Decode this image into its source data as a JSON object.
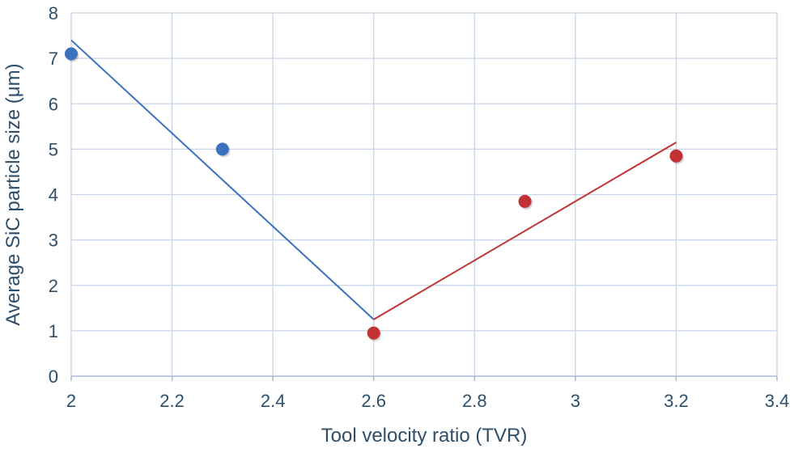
{
  "chart_data": {
    "type": "scatter",
    "title": "",
    "xlabel": "Tool velocity ratio (TVR)",
    "ylabel": "Average SiC particle size (μm)",
    "xlim": [
      2,
      3.4
    ],
    "ylim": [
      0,
      8
    ],
    "xticks": [
      "2",
      "2.2",
      "2.4",
      "2.6",
      "2.8",
      "3",
      "3.2",
      "3.4"
    ],
    "yticks": [
      "0",
      "1",
      "2",
      "3",
      "4",
      "5",
      "6",
      "7",
      "8"
    ],
    "grid": true,
    "legend": "none",
    "series": [
      {
        "color": "#3a72c0",
        "points": [
          {
            "x": 2.0,
            "y": 7.1
          },
          {
            "x": 2.3,
            "y": 5.0
          }
        ],
        "trendline": [
          {
            "x": 2.0,
            "y": 7.4
          },
          {
            "x": 2.6,
            "y": 1.25
          }
        ]
      },
      {
        "color": "#c23234",
        "points": [
          {
            "x": 2.6,
            "y": 0.95
          },
          {
            "x": 2.9,
            "y": 3.85
          },
          {
            "x": 3.2,
            "y": 4.85
          }
        ],
        "trendline": [
          {
            "x": 2.6,
            "y": 1.25
          },
          {
            "x": 3.2,
            "y": 5.15
          }
        ]
      }
    ]
  }
}
